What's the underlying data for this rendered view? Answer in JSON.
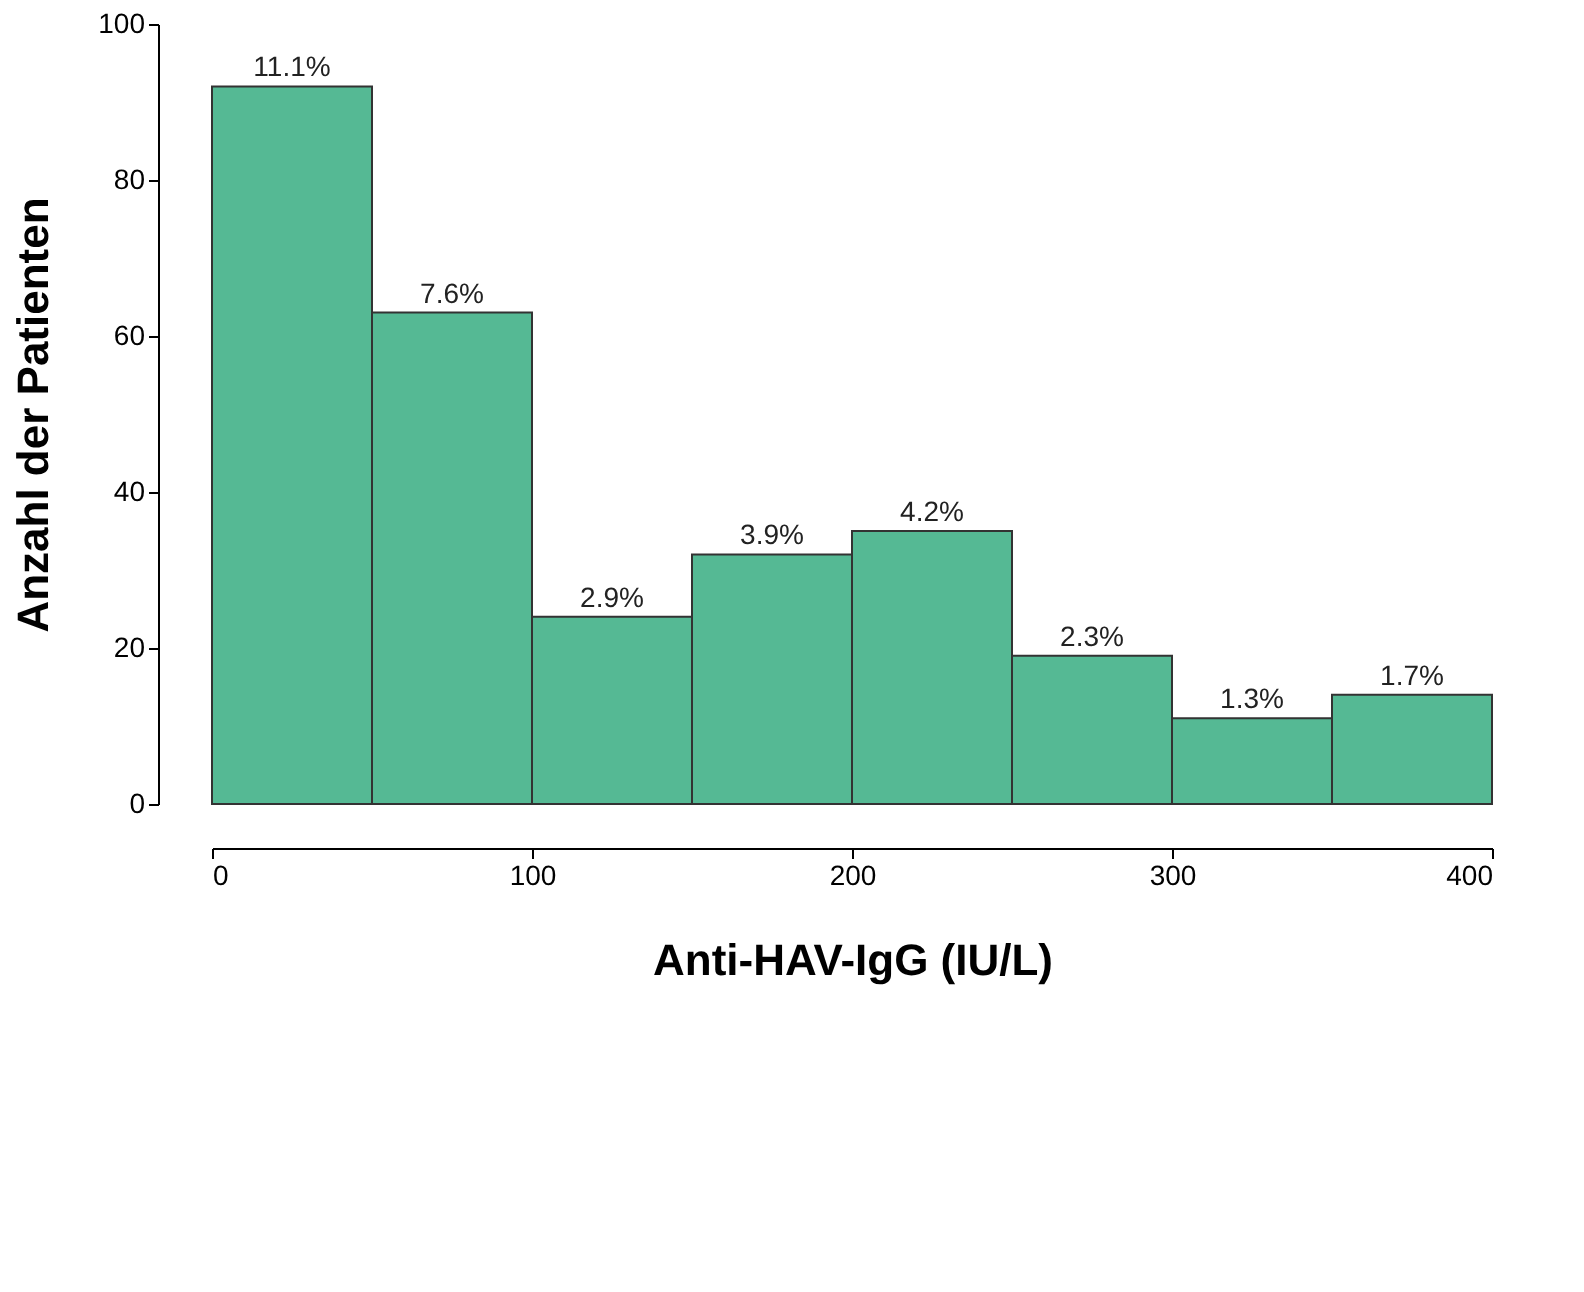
{
  "chart_data": {
    "type": "histogram",
    "xlabel": "Anti-HAV-IgG (IU/L)",
    "ylabel": "Anzahl der Patienten",
    "bins": [
      0,
      50,
      100,
      150,
      200,
      250,
      300,
      350,
      400
    ],
    "values": [
      92,
      63,
      24,
      32,
      35,
      19,
      11,
      14
    ],
    "annotations": [
      {
        "text": "11.1%",
        "x": 25,
        "y": 92
      },
      {
        "text": "7.6%",
        "x": 75,
        "y": 63
      },
      {
        "text": "2.9%",
        "x": 125,
        "y": 24
      },
      {
        "text": "3.9%",
        "x": 175,
        "y": 32
      },
      {
        "text": "4.2%",
        "x": 225,
        "y": 35
      },
      {
        "text": "2.3%",
        "x": 275,
        "y": 19
      },
      {
        "text": "1.3%",
        "x": 325,
        "y": 11
      },
      {
        "text": "1.7%",
        "x": 375,
        "y": 14
      }
    ],
    "color": "#55b994",
    "xlim": [
      0,
      400
    ],
    "xticks": [
      0,
      100,
      200,
      300,
      400
    ],
    "ylim": [
      0,
      100
    ],
    "yticks": [
      0,
      20,
      40,
      60,
      80,
      100
    ],
    "grid": false
  }
}
